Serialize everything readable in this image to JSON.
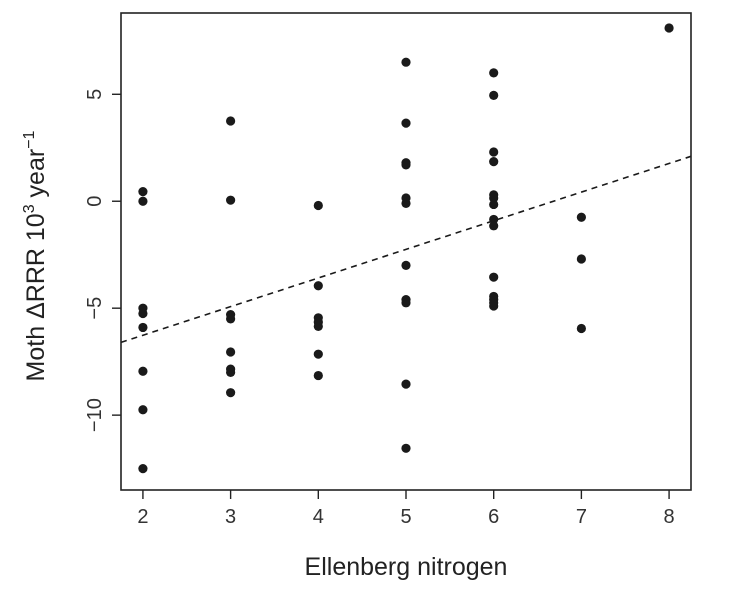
{
  "chart_data": {
    "type": "scatter",
    "xlabel": "Ellenberg nitrogen",
    "ylabel": {
      "prefix": "Moth ",
      "delta": "Δ",
      "rrr": "RRR 10",
      "exp3": "3",
      "year": " year",
      "exp_neg1": "−1"
    },
    "xlim": [
      1.75,
      8.25
    ],
    "ylim": [
      -13.5,
      8.8
    ],
    "x_ticks": [
      2,
      3,
      4,
      5,
      6,
      7,
      8
    ],
    "y_ticks": [
      -10,
      -5,
      0,
      5
    ],
    "y_tick_labels": [
      "−10",
      "−5",
      "0",
      "5"
    ],
    "grid": false,
    "marker_color": "#1a1a1a",
    "points": [
      {
        "x": 2,
        "y": 0.45
      },
      {
        "x": 2,
        "y": 0.0
      },
      {
        "x": 2,
        "y": -5.0
      },
      {
        "x": 2,
        "y": -5.25
      },
      {
        "x": 2,
        "y": -5.9
      },
      {
        "x": 2,
        "y": -7.95
      },
      {
        "x": 2,
        "y": -9.75
      },
      {
        "x": 2,
        "y": -12.5
      },
      {
        "x": 3,
        "y": 3.75
      },
      {
        "x": 3,
        "y": 0.05
      },
      {
        "x": 3,
        "y": -5.3
      },
      {
        "x": 3,
        "y": -5.5
      },
      {
        "x": 3,
        "y": -7.05
      },
      {
        "x": 3,
        "y": -7.85
      },
      {
        "x": 3,
        "y": -8.0
      },
      {
        "x": 3,
        "y": -8.95
      },
      {
        "x": 4,
        "y": -0.2
      },
      {
        "x": 4,
        "y": -3.95
      },
      {
        "x": 4,
        "y": -5.45
      },
      {
        "x": 4,
        "y": -5.65
      },
      {
        "x": 4,
        "y": -5.85
      },
      {
        "x": 4,
        "y": -7.15
      },
      {
        "x": 4,
        "y": -8.15
      },
      {
        "x": 5,
        "y": 6.5
      },
      {
        "x": 5,
        "y": 3.65
      },
      {
        "x": 5,
        "y": 1.8
      },
      {
        "x": 5,
        "y": 1.7
      },
      {
        "x": 5,
        "y": 0.15
      },
      {
        "x": 5,
        "y": -0.1
      },
      {
        "x": 5,
        "y": -3.0
      },
      {
        "x": 5,
        "y": -4.6
      },
      {
        "x": 5,
        "y": -4.75
      },
      {
        "x": 5,
        "y": -8.55
      },
      {
        "x": 5,
        "y": -11.55
      },
      {
        "x": 6,
        "y": 6.0
      },
      {
        "x": 6,
        "y": 4.95
      },
      {
        "x": 6,
        "y": 2.3
      },
      {
        "x": 6,
        "y": 1.85
      },
      {
        "x": 6,
        "y": 0.3
      },
      {
        "x": 6,
        "y": 0.15
      },
      {
        "x": 6,
        "y": -0.15
      },
      {
        "x": 6,
        "y": -0.85
      },
      {
        "x": 6,
        "y": -1.15
      },
      {
        "x": 6,
        "y": -3.55
      },
      {
        "x": 6,
        "y": -4.45
      },
      {
        "x": 6,
        "y": -4.6
      },
      {
        "x": 6,
        "y": -4.75
      },
      {
        "x": 6,
        "y": -4.9
      },
      {
        "x": 7,
        "y": -0.75
      },
      {
        "x": 7,
        "y": -2.7
      },
      {
        "x": 7,
        "y": -5.95
      },
      {
        "x": 8,
        "y": 8.1
      }
    ],
    "trend_line": {
      "style": "dashed",
      "x": [
        1.75,
        8.25
      ],
      "y": [
        -6.6,
        2.1
      ]
    }
  }
}
